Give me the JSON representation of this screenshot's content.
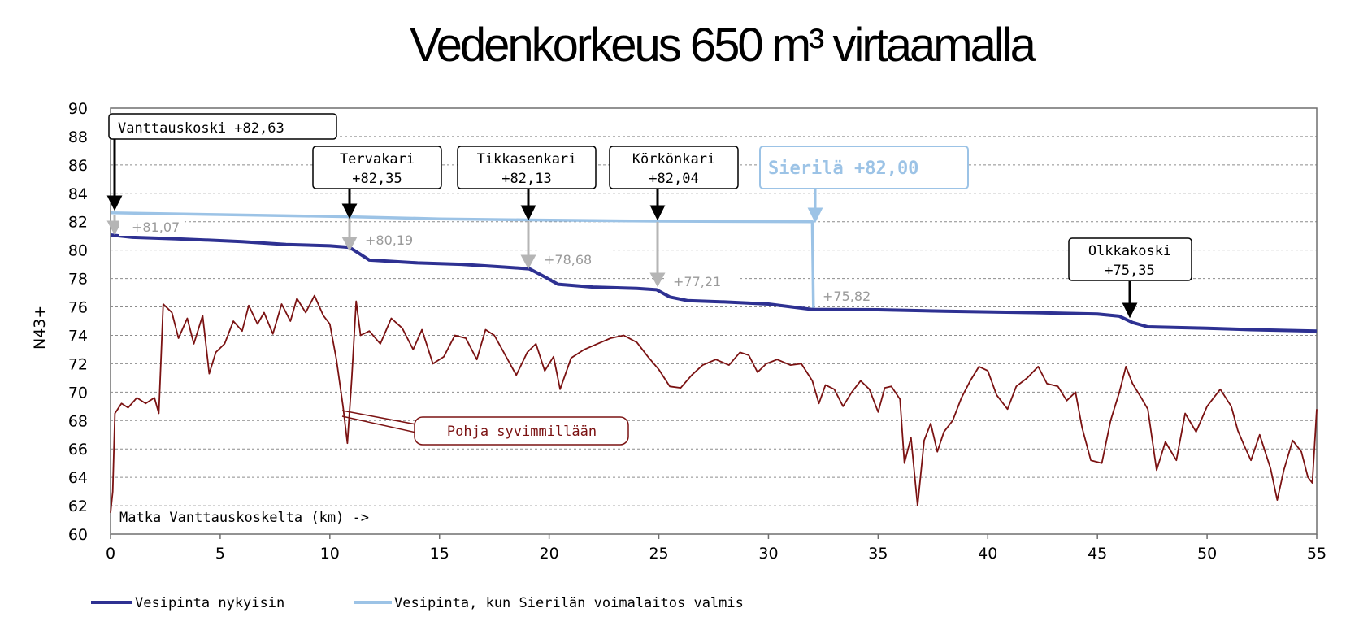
{
  "title": "Vedenkorkeus 650 m³ virtaamalla",
  "chart_data": {
    "type": "line",
    "title": "Vedenkorkeus 650 m³ virtaamalla",
    "xlabel": "Matka Vanttauskoskelta (km) ->",
    "ylabel": "N43+",
    "xlim": [
      0,
      55
    ],
    "ylim": [
      60,
      90
    ],
    "x_ticks": [
      "0",
      "5",
      "10",
      "15",
      "20",
      "25",
      "30",
      "35",
      "40",
      "45",
      "50",
      "55"
    ],
    "y_ticks": [
      "60",
      "62",
      "64",
      "66",
      "68",
      "70",
      "72",
      "74",
      "76",
      "78",
      "80",
      "82",
      "84",
      "86",
      "88",
      "90"
    ],
    "grid": true,
    "legend_position": "bottom",
    "series": [
      {
        "name": "Vesipinta nykyisin",
        "color": "#2e3192",
        "points": [
          [
            0,
            81.07
          ],
          [
            1,
            80.9
          ],
          [
            3,
            80.8
          ],
          [
            6,
            80.6
          ],
          [
            8,
            80.4
          ],
          [
            10,
            80.3
          ],
          [
            10.9,
            80.19
          ],
          [
            11.3,
            79.8
          ],
          [
            11.8,
            79.3
          ],
          [
            14,
            79.1
          ],
          [
            16,
            79.0
          ],
          [
            18,
            78.8
          ],
          [
            19.1,
            78.68
          ],
          [
            19.7,
            78.2
          ],
          [
            20.4,
            77.6
          ],
          [
            22,
            77.4
          ],
          [
            24,
            77.3
          ],
          [
            24.9,
            77.21
          ],
          [
            25.5,
            76.7
          ],
          [
            26.3,
            76.45
          ],
          [
            28,
            76.35
          ],
          [
            30,
            76.2
          ],
          [
            32,
            75.82
          ],
          [
            35,
            75.8
          ],
          [
            38,
            75.7
          ],
          [
            42,
            75.6
          ],
          [
            45,
            75.5
          ],
          [
            46,
            75.35
          ],
          [
            46.6,
            74.9
          ],
          [
            47.3,
            74.6
          ],
          [
            50,
            74.5
          ],
          [
            52,
            74.4
          ],
          [
            55,
            74.3
          ]
        ]
      },
      {
        "name": "Vesipinta, kun Sierilän voimalaitos valmis",
        "color": "#9cc3e6",
        "points": [
          [
            0,
            82.63
          ],
          [
            5,
            82.5
          ],
          [
            10.9,
            82.35
          ],
          [
            15,
            82.2
          ],
          [
            19.1,
            82.13
          ],
          [
            22,
            82.08
          ],
          [
            24.9,
            82.04
          ],
          [
            28,
            82.02
          ],
          [
            32,
            82.0
          ],
          [
            32.05,
            75.82
          ],
          [
            35,
            75.8
          ],
          [
            38,
            75.7
          ],
          [
            42,
            75.6
          ],
          [
            45,
            75.5
          ],
          [
            46,
            75.35
          ],
          [
            46.6,
            74.9
          ],
          [
            47.3,
            74.6
          ],
          [
            50,
            74.5
          ],
          [
            52,
            74.4
          ],
          [
            55,
            74.3
          ]
        ]
      },
      {
        "name": "",
        "color": "#7b1212",
        "points": [
          [
            0,
            61.5
          ],
          [
            0.1,
            63
          ],
          [
            0.2,
            68.5
          ],
          [
            0.5,
            69.2
          ],
          [
            0.8,
            68.9
          ],
          [
            1.2,
            69.6
          ],
          [
            1.6,
            69.2
          ],
          [
            2,
            69.6
          ],
          [
            2.2,
            68.5
          ],
          [
            2.4,
            76.2
          ],
          [
            2.8,
            75.6
          ],
          [
            3.1,
            73.8
          ],
          [
            3.5,
            75.2
          ],
          [
            3.8,
            73.4
          ],
          [
            4.2,
            75.4
          ],
          [
            4.5,
            71.3
          ],
          [
            4.8,
            72.8
          ],
          [
            5.2,
            73.4
          ],
          [
            5.6,
            75.0
          ],
          [
            6,
            74.3
          ],
          [
            6.3,
            76.1
          ],
          [
            6.7,
            74.8
          ],
          [
            7,
            75.6
          ],
          [
            7.4,
            74.1
          ],
          [
            7.8,
            76.2
          ],
          [
            8.2,
            75.0
          ],
          [
            8.5,
            76.6
          ],
          [
            8.9,
            75.6
          ],
          [
            9.3,
            76.8
          ],
          [
            9.7,
            75.4
          ],
          [
            10,
            74.8
          ],
          [
            10.3,
            72.3
          ],
          [
            10.6,
            69.0
          ],
          [
            10.8,
            66.4
          ],
          [
            11,
            71.0
          ],
          [
            11.2,
            76.4
          ],
          [
            11.4,
            74.0
          ],
          [
            11.8,
            74.3
          ],
          [
            12.3,
            73.4
          ],
          [
            12.8,
            75.2
          ],
          [
            13.3,
            74.5
          ],
          [
            13.8,
            73.0
          ],
          [
            14.2,
            74.4
          ],
          [
            14.7,
            72.0
          ],
          [
            15.2,
            72.5
          ],
          [
            15.7,
            74.0
          ],
          [
            16.2,
            73.8
          ],
          [
            16.7,
            72.3
          ],
          [
            17.1,
            74.4
          ],
          [
            17.5,
            74.0
          ],
          [
            18,
            72.6
          ],
          [
            18.5,
            71.2
          ],
          [
            19,
            72.8
          ],
          [
            19.4,
            73.4
          ],
          [
            19.8,
            71.5
          ],
          [
            20.2,
            72.5
          ],
          [
            20.5,
            70.2
          ],
          [
            21,
            72.4
          ],
          [
            21.6,
            73.0
          ],
          [
            22.2,
            73.4
          ],
          [
            22.8,
            73.8
          ],
          [
            23.4,
            74.0
          ],
          [
            24,
            73.5
          ],
          [
            24.5,
            72.5
          ],
          [
            25,
            71.6
          ],
          [
            25.5,
            70.4
          ],
          [
            26,
            70.3
          ],
          [
            26.5,
            71.2
          ],
          [
            27,
            71.9
          ],
          [
            27.6,
            72.3
          ],
          [
            28.2,
            71.9
          ],
          [
            28.7,
            72.8
          ],
          [
            29.1,
            72.6
          ],
          [
            29.5,
            71.4
          ],
          [
            29.9,
            72.0
          ],
          [
            30.4,
            72.3
          ],
          [
            31,
            71.9
          ],
          [
            31.5,
            72.0
          ],
          [
            32,
            70.8
          ],
          [
            32.3,
            69.2
          ],
          [
            32.6,
            70.5
          ],
          [
            33,
            70.2
          ],
          [
            33.4,
            69.0
          ],
          [
            33.8,
            70.0
          ],
          [
            34.2,
            70.8
          ],
          [
            34.6,
            70.2
          ],
          [
            35,
            68.6
          ],
          [
            35.3,
            70.3
          ],
          [
            35.6,
            70.4
          ],
          [
            36,
            69.5
          ],
          [
            36.2,
            65.0
          ],
          [
            36.5,
            66.8
          ],
          [
            36.8,
            62.0
          ],
          [
            37.1,
            66.6
          ],
          [
            37.4,
            67.8
          ],
          [
            37.7,
            65.8
          ],
          [
            38,
            67.2
          ],
          [
            38.4,
            68.0
          ],
          [
            38.8,
            69.6
          ],
          [
            39.2,
            70.8
          ],
          [
            39.6,
            71.8
          ],
          [
            40,
            71.5
          ],
          [
            40.4,
            69.8
          ],
          [
            40.9,
            68.8
          ],
          [
            41.3,
            70.4
          ],
          [
            41.8,
            71.0
          ],
          [
            42.3,
            71.8
          ],
          [
            42.7,
            70.6
          ],
          [
            43.2,
            70.4
          ],
          [
            43.6,
            69.4
          ],
          [
            44,
            70.0
          ],
          [
            44.3,
            67.5
          ],
          [
            44.7,
            65.2
          ],
          [
            45.2,
            65.0
          ],
          [
            45.6,
            68.0
          ],
          [
            46,
            70.0
          ],
          [
            46.3,
            71.8
          ],
          [
            46.6,
            70.6
          ],
          [
            47,
            69.6
          ],
          [
            47.3,
            68.8
          ],
          [
            47.7,
            64.5
          ],
          [
            48.1,
            66.5
          ],
          [
            48.6,
            65.2
          ],
          [
            49,
            68.5
          ],
          [
            49.5,
            67.2
          ],
          [
            50,
            69.0
          ],
          [
            50.6,
            70.2
          ],
          [
            51.1,
            69.0
          ],
          [
            51.4,
            67.3
          ],
          [
            51.7,
            66.2
          ],
          [
            52,
            65.2
          ],
          [
            52.4,
            67.0
          ],
          [
            52.9,
            64.6
          ],
          [
            53.2,
            62.4
          ],
          [
            53.5,
            64.5
          ],
          [
            53.9,
            66.6
          ],
          [
            54.3,
            65.8
          ],
          [
            54.6,
            64.0
          ],
          [
            54.8,
            63.6
          ],
          [
            55,
            68.8
          ]
        ]
      }
    ],
    "annotations": {
      "boxes": [
        {
          "label": "Vanttauskoski +82,63",
          "x": 0
        },
        {
          "label": "Tervakari",
          "value": "+82,35",
          "x": 10.9
        },
        {
          "label": "Tikkasenkari",
          "value": "+82,13",
          "x": 19.1
        },
        {
          "label": "Körkönkari",
          "value": "+82,04",
          "x": 24.9
        },
        {
          "label": "Sierilä +82,00",
          "x": 32
        },
        {
          "label": "Olkkakoski",
          "value": "+75,35",
          "x": 46.3
        },
        {
          "label": "Pohja syvimmillään",
          "x": 10.8
        }
      ],
      "current_levels": [
        "+81,07",
        "+80,19",
        "+78,68",
        "+77,21",
        "+75,82"
      ]
    }
  }
}
